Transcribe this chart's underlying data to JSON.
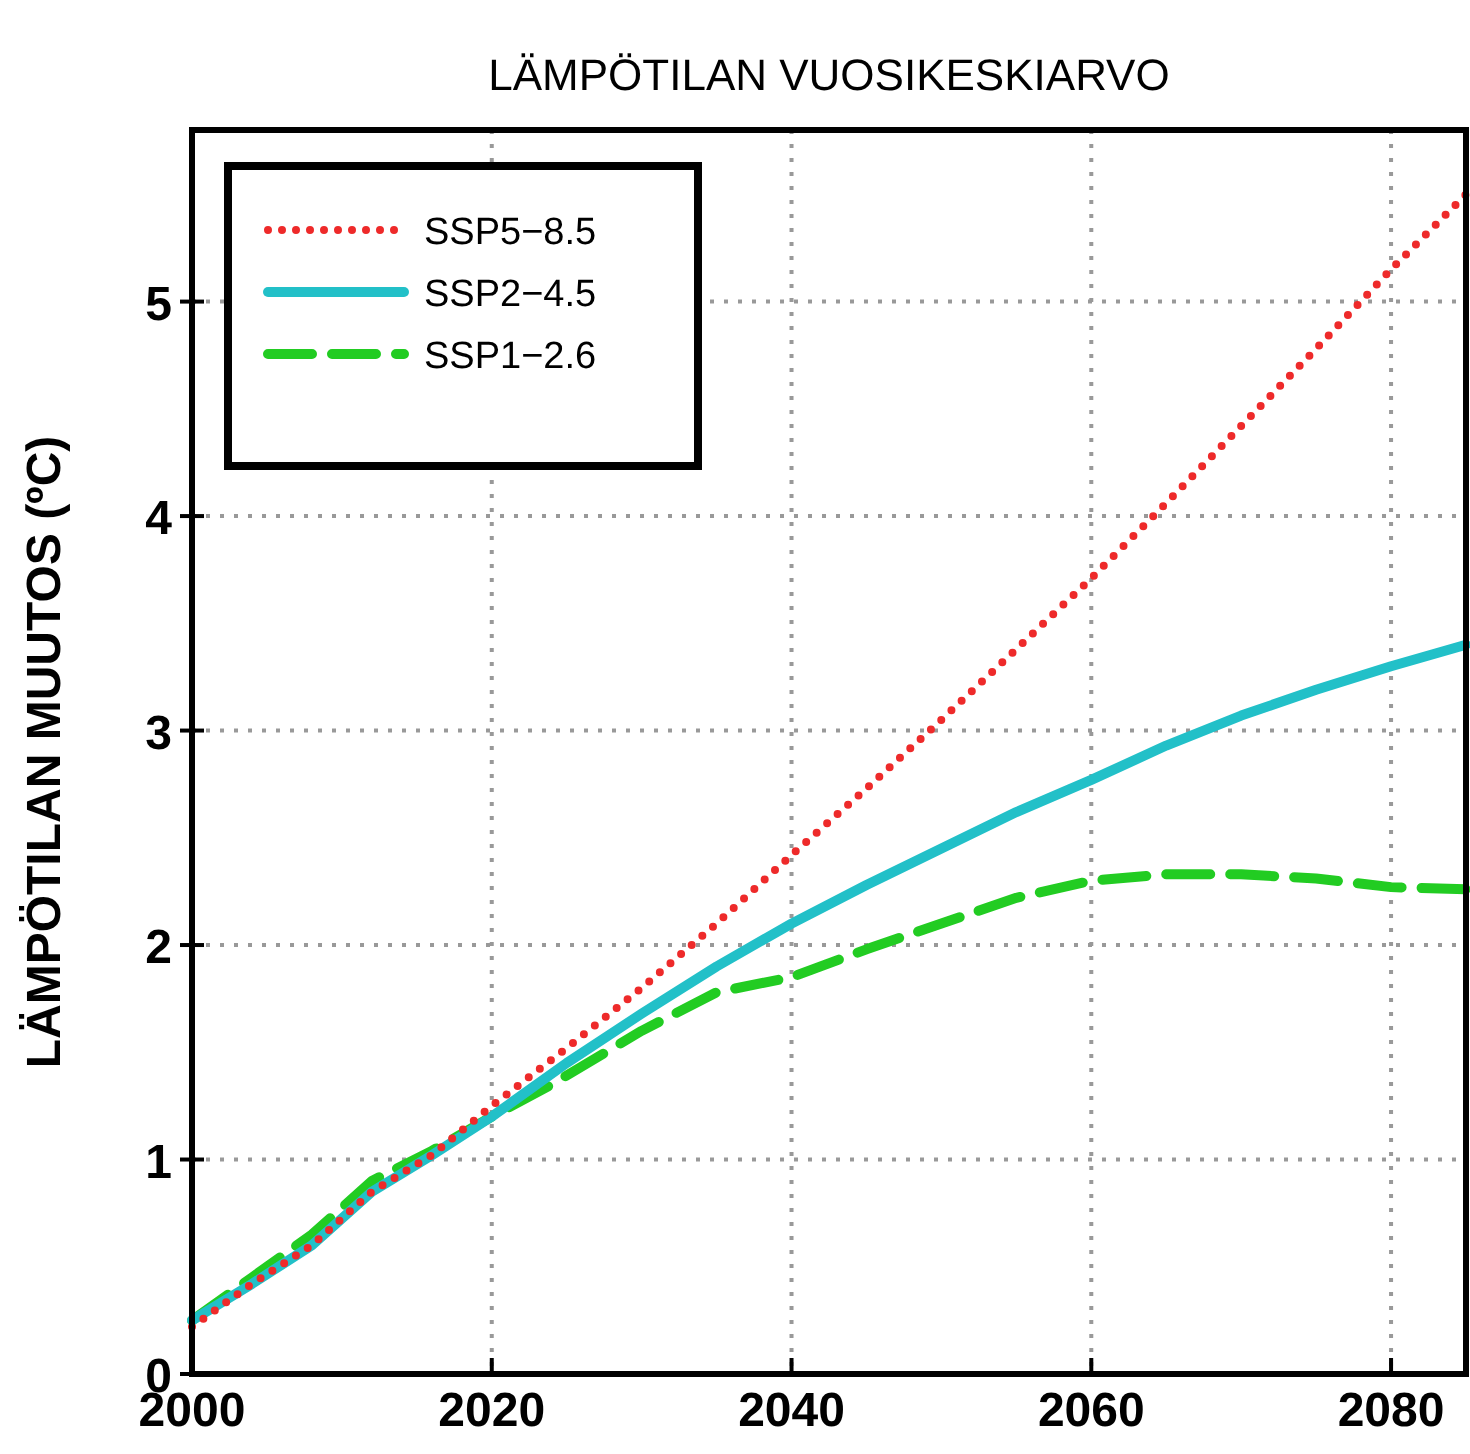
{
  "chart_data": {
    "type": "line",
    "title": "LÄMPÖTILAN VUOSIKESKIARVO",
    "ylabel": "LÄMPÖTILAN MUUTOS (ºC)",
    "xlim": [
      2000,
      2085
    ],
    "ylim": [
      0,
      5.8
    ],
    "xticks": [
      2000,
      2020,
      2040,
      2060,
      2080
    ],
    "yticks": [
      0,
      1,
      2,
      3,
      4,
      5
    ],
    "grid": true,
    "legend": "top left",
    "series": [
      {
        "name": "SSP5−8.5",
        "color": "#ee2a2a",
        "line_style": "dotted",
        "x": [
          2000,
          2004,
          2008,
          2012,
          2016,
          2020,
          2025,
          2030,
          2035,
          2040,
          2045,
          2050,
          2055,
          2060,
          2065,
          2070,
          2075,
          2080,
          2085
        ],
        "values": [
          0.22,
          0.42,
          0.6,
          0.85,
          1.02,
          1.25,
          1.52,
          1.8,
          2.1,
          2.42,
          2.73,
          3.05,
          3.38,
          3.71,
          4.06,
          4.42,
          4.78,
          5.15,
          5.5
        ]
      },
      {
        "name": "SSP2−4.5",
        "color": "#22c0c8",
        "line_style": "solid",
        "x": [
          2000,
          2004,
          2008,
          2012,
          2016,
          2020,
          2025,
          2030,
          2035,
          2040,
          2045,
          2050,
          2055,
          2060,
          2065,
          2070,
          2075,
          2080,
          2085
        ],
        "values": [
          0.25,
          0.42,
          0.6,
          0.85,
          1.02,
          1.2,
          1.45,
          1.68,
          1.9,
          2.1,
          2.28,
          2.45,
          2.62,
          2.77,
          2.93,
          3.07,
          3.19,
          3.3,
          3.4
        ]
      },
      {
        "name": "SSP1−2.6",
        "color": "#22cc22",
        "line_style": "dashed",
        "x": [
          2000,
          2004,
          2008,
          2012,
          2016,
          2020,
          2024,
          2030,
          2035,
          2040,
          2045,
          2050,
          2055,
          2060,
          2065,
          2070,
          2075,
          2080,
          2085
        ],
        "values": [
          0.25,
          0.45,
          0.65,
          0.9,
          1.04,
          1.2,
          1.35,
          1.6,
          1.78,
          1.85,
          1.98,
          2.1,
          2.22,
          2.3,
          2.33,
          2.33,
          2.31,
          2.27,
          2.26
        ]
      }
    ]
  }
}
